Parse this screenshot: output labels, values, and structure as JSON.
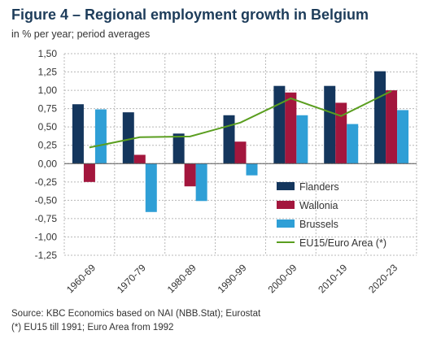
{
  "header": {
    "title": "Figure 4 – Regional employment growth in Belgium",
    "subtitle": "in % per year; period averages"
  },
  "footer": {
    "source": "Source: KBC Economics based on NAI (NBB.Stat); Eurostat",
    "note": "(*) EU15 till 1991; Euro Area from 1992"
  },
  "colors": {
    "flanders": "#14365d",
    "wallonia": "#a3163d",
    "brussels": "#2f9fd6",
    "eu": "#5a9e1f",
    "grid": "#b8b8b8"
  },
  "chart_data": {
    "type": "bar",
    "categories": [
      "1960-69",
      "1970-79",
      "1980-89",
      "1990-99",
      "2000-09",
      "2010-19",
      "2020-23"
    ],
    "series": [
      {
        "name": "Flanders",
        "type": "bar",
        "values": [
          0.81,
          0.7,
          0.41,
          0.66,
          1.06,
          1.06,
          1.26
        ]
      },
      {
        "name": "Wallonia",
        "type": "bar",
        "values": [
          -0.25,
          0.12,
          -0.31,
          0.3,
          0.97,
          0.83,
          1.0
        ]
      },
      {
        "name": "Brussels",
        "type": "bar",
        "values": [
          0.74,
          -0.66,
          -0.51,
          -0.16,
          0.66,
          0.54,
          0.73
        ]
      },
      {
        "name": "EU15/Euro Area (*)",
        "type": "line",
        "values": [
          0.22,
          0.36,
          0.37,
          0.56,
          0.89,
          0.65,
          0.99
        ]
      }
    ],
    "yticks": [
      "1,50",
      "1,25",
      "1,00",
      "0,75",
      "0,50",
      "0,25",
      "0,00",
      "-0,25",
      "-0,50",
      "-0,75",
      "-1,00",
      "-1,25"
    ],
    "ylim": [
      -1.25,
      1.5
    ],
    "grid": true,
    "legend_position": "lower-right"
  }
}
